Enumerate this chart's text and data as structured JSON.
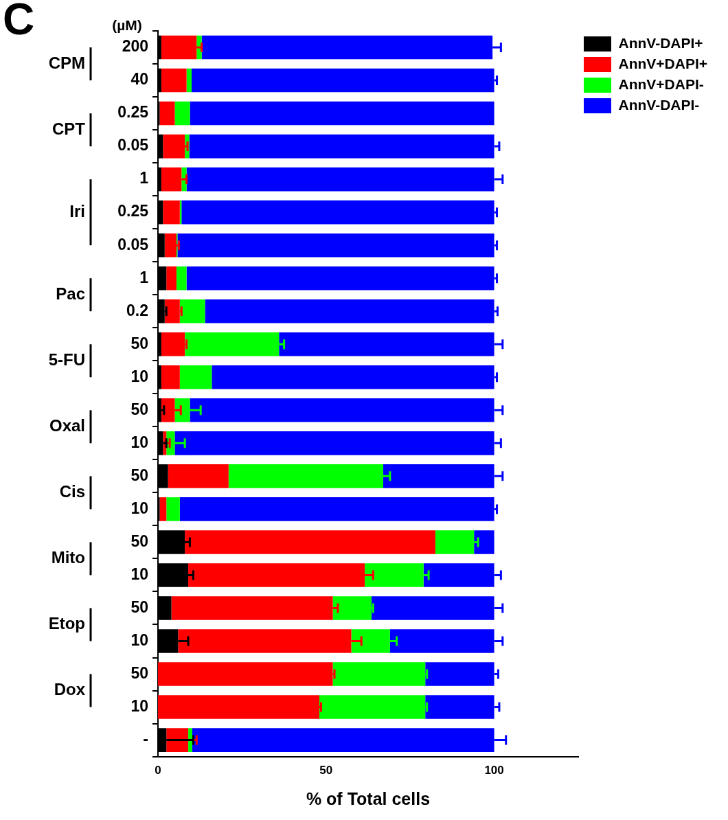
{
  "chart_data": {
    "type": "bar",
    "orientation": "horizontal",
    "stacked": true,
    "categories": [
      "200",
      "40",
      "0.25",
      "0.05",
      "1",
      "0.25",
      "0.05",
      "1",
      "0.2",
      "50",
      "10",
      "50",
      "10",
      "50",
      "10",
      "50",
      "10",
      "50",
      "10",
      "50",
      "10",
      "-"
    ],
    "series": [
      {
        "name": "AnnV-DAPI+",
        "color": "#000000",
        "values": [
          1,
          1,
          0.5,
          1.5,
          1,
          1.5,
          2,
          2.5,
          2,
          1,
          1,
          1,
          1.5,
          3,
          0.5,
          8,
          9,
          4,
          6,
          0,
          0,
          2.5
        ],
        "errors": [
          null,
          null,
          null,
          null,
          null,
          null,
          null,
          null,
          0.5,
          null,
          null,
          0.8,
          1,
          null,
          null,
          1.5,
          1.5,
          null,
          3,
          null,
          null,
          8
        ]
      },
      {
        "name": "AnnV+DAPI+",
        "color": "#ff0000",
        "values": [
          10.5,
          7.5,
          4.5,
          6.5,
          6,
          5,
          3.5,
          3,
          4.5,
          7,
          5.5,
          4,
          1,
          18,
          2,
          74.5,
          52.5,
          48,
          51.5,
          52,
          48,
          6.5
        ],
        "errors": [
          1.5,
          null,
          null,
          0.8,
          1.5,
          null,
          0.7,
          null,
          0.5,
          0.5,
          null,
          1.8,
          1,
          null,
          null,
          null,
          2.5,
          1.5,
          3,
          0.5,
          0.5,
          2.5
        ]
      },
      {
        "name": "AnnV+DAPI-",
        "color": "#00ff00",
        "values": [
          1.5,
          1.5,
          4.5,
          1.3,
          1.5,
          0.5,
          0.3,
          3,
          7.5,
          28,
          9.5,
          4.5,
          2.5,
          46,
          4,
          11.5,
          17.5,
          11.5,
          11.5,
          27.5,
          31.5,
          1.2
        ],
        "errors": [
          null,
          null,
          null,
          null,
          null,
          null,
          null,
          null,
          null,
          1.5,
          null,
          3.2,
          3,
          2,
          null,
          1.2,
          1.5,
          0.5,
          2,
          0.5,
          0.5,
          null
        ]
      },
      {
        "name": "AnnV-DAPI-",
        "color": "#0000ff",
        "values": [
          86.5,
          90,
          90.5,
          90.7,
          91.5,
          93,
          94.2,
          91.5,
          86,
          64,
          84,
          90.5,
          95,
          33,
          93.5,
          6,
          21,
          36.5,
          31,
          20.5,
          20.5,
          89.8
        ],
        "errors": [
          2.5,
          0.8,
          null,
          1.5,
          2.5,
          0.8,
          0.8,
          0.8,
          1,
          2.5,
          0.8,
          2.5,
          2,
          2.5,
          0.8,
          null,
          2,
          2.5,
          2.5,
          1.2,
          1.5,
          3.5
        ]
      }
    ],
    "xlim": [
      0,
      125
    ],
    "xticks": [
      0,
      50,
      100
    ],
    "xlabel": "% of Total cells",
    "ylabel": "(µM)",
    "grid": false,
    "legend": "top right",
    "y2_categories": [
      "CPM",
      null,
      "CPT",
      null,
      null,
      "Iri",
      null,
      "Pac",
      null,
      "5-FU",
      null,
      "Oxal",
      null,
      "Cis",
      null,
      "Mito",
      null,
      "Etop",
      null,
      "Dox",
      null,
      null
    ],
    "annotations": [
      "C"
    ]
  }
}
